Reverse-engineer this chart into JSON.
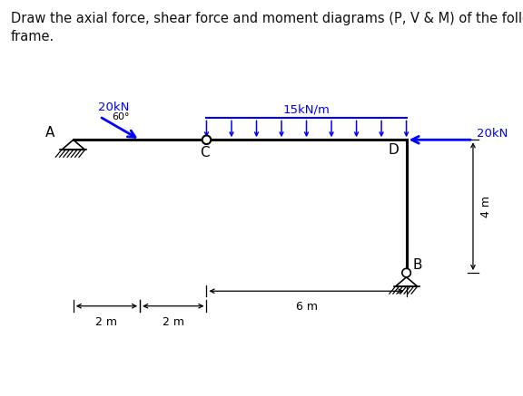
{
  "title_text": "Draw the axial force, shear force and moment diagrams (P, V & M) of the following\nframe.",
  "title_fontsize": 10.5,
  "bg_color": "#ffffff",
  "beam_color": "#000000",
  "force_color": "#0000ff",
  "dim_color": "#000000",
  "label_A": "A",
  "label_C": "C",
  "label_D": "D",
  "label_B": "B",
  "load_20kN_label": "20kN",
  "load_dist_label": "15kN/m",
  "load_horiz_label": "20kN",
  "dim_2m_1": "2 m",
  "dim_2m_2": "2 m",
  "dim_6m": "6 m",
  "dim_4m": "4 m",
  "angle_label": "60°"
}
